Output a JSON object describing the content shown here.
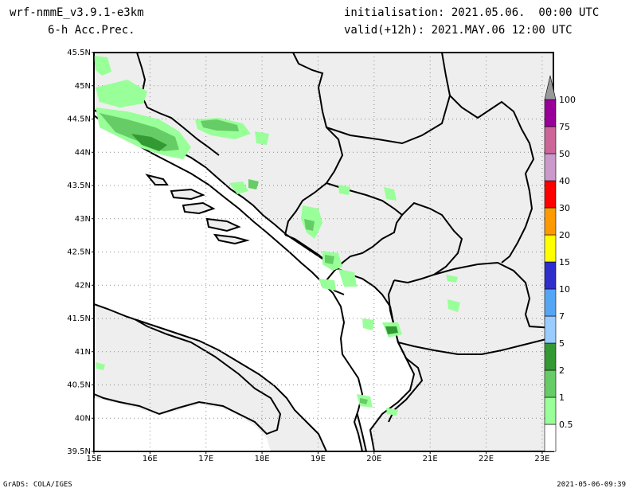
{
  "header": {
    "model": "wrf-nmmE_v3.9.1-e3km",
    "field": "6-h Acc.Prec.",
    "init": "initialisation: 2021.05.06.  00:00 UTC",
    "valid": "valid(+12h): 2021.MAY.06 12:00 UTC"
  },
  "map": {
    "lat_labels": [
      "45.5N",
      "45N",
      "44.5N",
      "44N",
      "43.5N",
      "43N",
      "42.5N",
      "42N",
      "41.5N",
      "41N",
      "40.5N",
      "40N",
      "39.5N"
    ],
    "lon_labels": [
      "15E",
      "16E",
      "17E",
      "18E",
      "19E",
      "20E",
      "21E",
      "22E",
      "23E"
    ],
    "lat_range": [
      39.5,
      45.5
    ],
    "lon_range": [
      15,
      23.2
    ],
    "land_color": "#eeeeee",
    "sea_color": "#ffffff",
    "border_color": "#000000"
  },
  "legend": {
    "levels": [
      "0.5",
      "1",
      "2",
      "5",
      "7",
      "10",
      "15",
      "20",
      "30",
      "40",
      "50",
      "75",
      "100"
    ],
    "colors": [
      "#ffffff",
      "#99ff99",
      "#66cc66",
      "#339933",
      "#99ccff",
      "#55a5f5",
      "#2e2ecc",
      "#ffff00",
      "#ff9900",
      "#ff0000",
      "#cc99cc",
      "#cc6699",
      "#990099",
      "#999999"
    ]
  },
  "footer": {
    "left": "GrADS: COLA/IGES",
    "right": "2021-05-06-09:39"
  }
}
